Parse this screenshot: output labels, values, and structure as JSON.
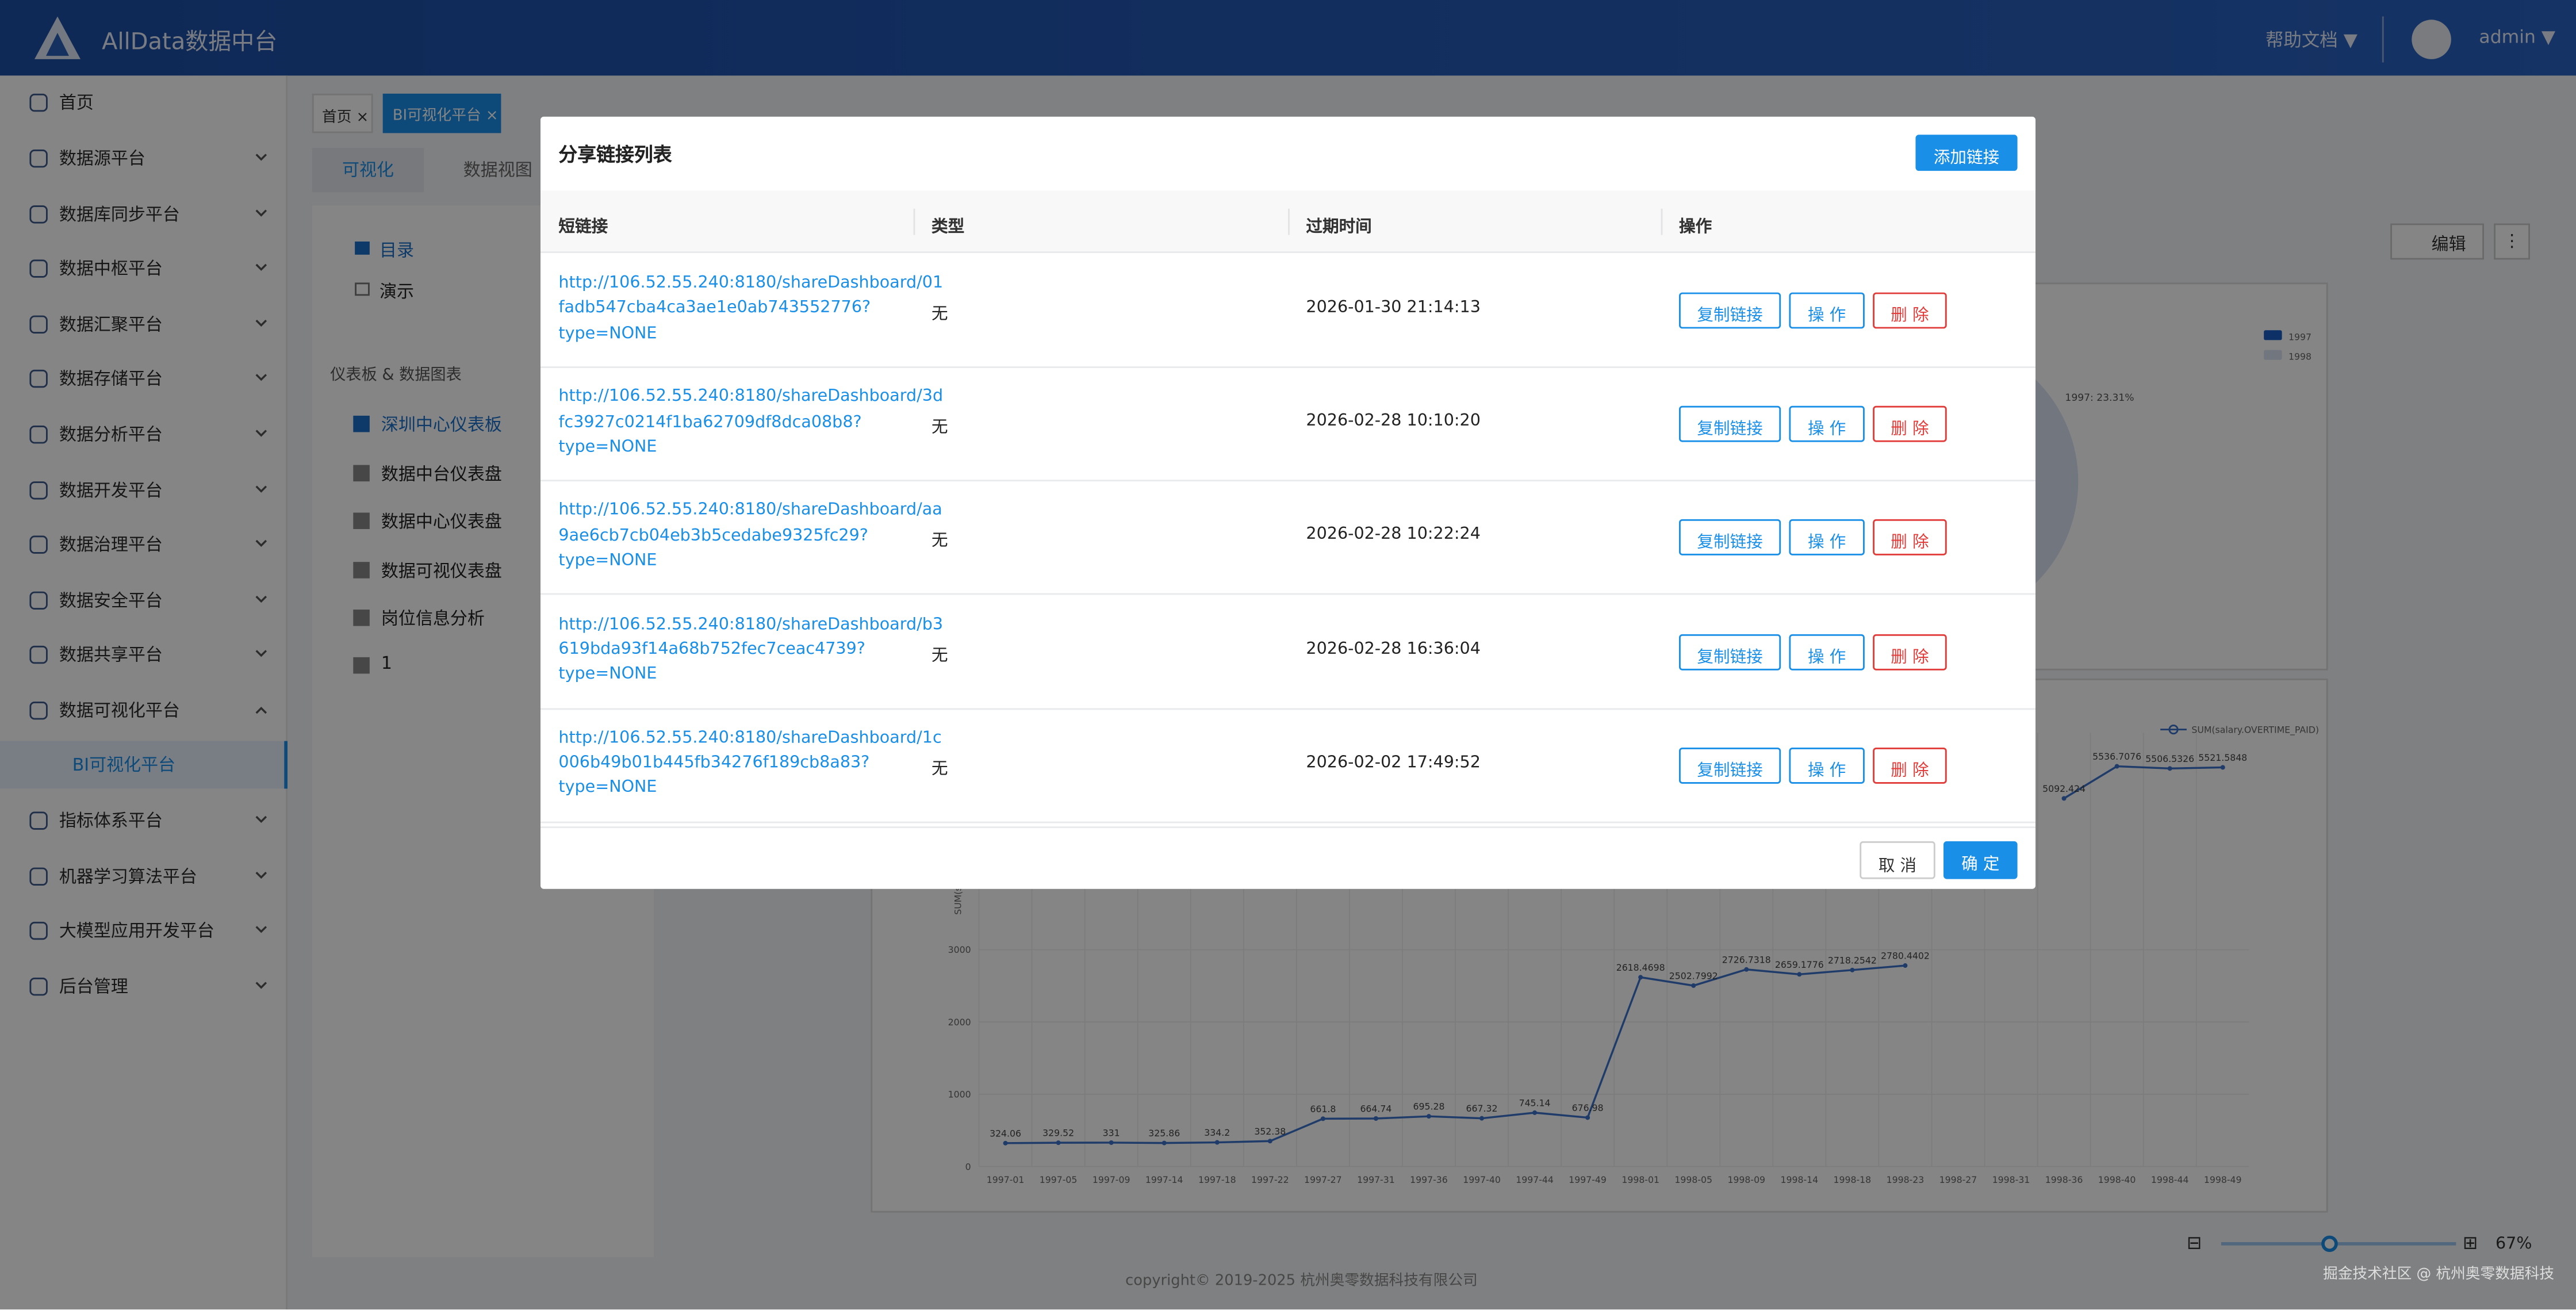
{
  "header": {
    "title": "AllData数据中台",
    "help": "帮助文档 ▼",
    "user": "admin ▼"
  },
  "sidebar": {
    "items": [
      "首页",
      "数据源平台",
      "数据库同步平台",
      "数据中枢平台",
      "数据汇聚平台",
      "数据存储平台",
      "数据分析平台",
      "数据开发平台",
      "数据治理平台",
      "数据安全平台",
      "数据共享平台",
      "数据可视化平台",
      "BI可视化平台",
      "指标体系平台",
      "机器学习算法平台",
      "大模型应用开发平台",
      "后台管理"
    ]
  },
  "tabs": [
    "首页 ×",
    "BI可视化平台 ×"
  ],
  "subtabs": [
    "可视化",
    "数据视图"
  ],
  "tree": {
    "folders": [
      "目录",
      "演示"
    ],
    "section": "仪表板 & 数据图表",
    "items": [
      "深圳中心仪表板",
      "数据中台仪表盘",
      "数据中心仪表盘",
      "数据可视仪表盘",
      "岗位信息分析",
      "1"
    ]
  },
  "toolbar": {
    "edit": "编辑",
    "more": "⋮"
  },
  "pie": {
    "legend": [
      "1997",
      "1998"
    ],
    "label": "1997: 23.31%"
  },
  "line_chart": {
    "type": "line",
    "legend": "SUM(salary.OVERTIME_PAID)",
    "y_label": "SUM(salary.OVERTIME_PAID)",
    "x": [
      "1997-01",
      "1997-05",
      "1997-09",
      "1997-14",
      "1997-18",
      "1997-22",
      "1997-27",
      "1997-31",
      "1997-36",
      "1997-40",
      "1997-44",
      "1997-49",
      "1998-01",
      "1998-05",
      "1998-09",
      "1998-14",
      "1998-18",
      "1998-23",
      "1998-27",
      "1998-31",
      "1998-36",
      "1998-40",
      "1998-44",
      "1998-49"
    ],
    "values": [
      324.06,
      329.52,
      331,
      325.86,
      334.2,
      352.38,
      661.8,
      664.74,
      695.28,
      667.32,
      745.14,
      676.98,
      2618.4698,
      2502.7992,
      2726.7318,
      2659.1776,
      2718.2542,
      2780.4402,
      null,
      null,
      5092.424,
      5536.7076,
      5506.5326,
      5521.5848
    ],
    "color": "#3a72c9",
    "ylim": [
      0,
      6000
    ],
    "yticks": [
      0,
      1000,
      2000,
      3000
    ]
  },
  "zoom": {
    "minus": "⊟",
    "plus": "⊞",
    "percent": "67%"
  },
  "footer": {
    "copyright": "copyright© 2019-2025 杭州奥零数据科技有限公司",
    "watermark": "掘金技术社区 @ 杭州奥零数据科技"
  },
  "modal": {
    "title": "分享链接列表",
    "add": "添加链接",
    "columns": [
      "短链接",
      "类型",
      "过期时间",
      "操作"
    ],
    "actions": [
      "复制链接",
      "操 作",
      "删 除"
    ],
    "rows": [
      {
        "url": [
          "http://106.52.55.240:8180/shareDashboard/01",
          "fadb547cba4ca3ae1e0ab743552776?",
          "type=NONE"
        ],
        "type": "无",
        "expire": "2026-01-30 21:14:13"
      },
      {
        "url": [
          "http://106.52.55.240:8180/shareDashboard/3d",
          "fc3927c0214f1ba62709df8dca08b8?",
          "type=NONE"
        ],
        "type": "无",
        "expire": "2026-02-28 10:10:20"
      },
      {
        "url": [
          "http://106.52.55.240:8180/shareDashboard/aa",
          "9ae6cb7cb04eb3b5cedabe9325fc29?",
          "type=NONE"
        ],
        "type": "无",
        "expire": "2026-02-28 10:22:24"
      },
      {
        "url": [
          "http://106.52.55.240:8180/shareDashboard/b3",
          "619bda93f14a68b752fec7ceac4739?",
          "type=NONE"
        ],
        "type": "无",
        "expire": "2026-02-28 16:36:04"
      },
      {
        "url": [
          "http://106.52.55.240:8180/shareDashboard/1c",
          "006b49b01b445fb34276f189cb8a83?",
          "type=NONE"
        ],
        "type": "无",
        "expire": "2026-02-02 17:49:52"
      }
    ],
    "cancel": "取 消",
    "ok": "确 定"
  }
}
